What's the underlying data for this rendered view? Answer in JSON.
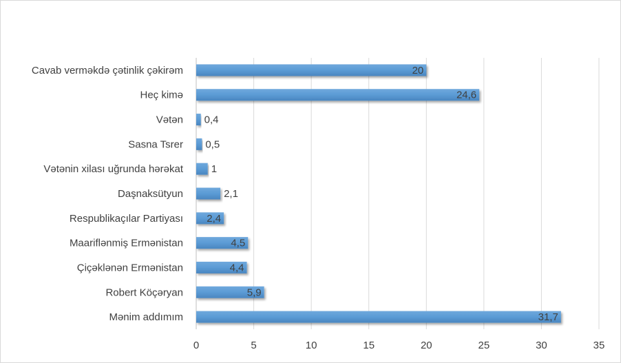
{
  "chart_data": {
    "type": "bar",
    "orientation": "horizontal",
    "categories": [
      "Cavab vermәkdә çәtinlik çәkirәm",
      "Heç kimә",
      "Vәtәn",
      "Sasna Tsrer",
      "Vәtәnin xilası uğrunda hәrәkat",
      "Daşnaksütyun",
      "Respublikaçılar Partiyası",
      "Maariflәnmiş Ermәnistan",
      "Çiçәklәnәn Ermәnistan",
      "Robert Köçәryan",
      "Mәnim addımım"
    ],
    "values": [
      20,
      24.6,
      0.4,
      0.5,
      1,
      2.1,
      2.4,
      4.5,
      4.4,
      5.9,
      31.7
    ],
    "value_labels": [
      "20",
      "24,6",
      "0,4",
      "0,5",
      "1",
      "2,1",
      "2,4",
      "4,5",
      "4,4",
      "5,9",
      "31,7"
    ],
    "x_ticks": [
      0,
      5,
      10,
      15,
      20,
      25,
      30,
      35
    ],
    "x_tick_labels": [
      "0",
      "5",
      "10",
      "15",
      "20",
      "25",
      "30",
      "35"
    ],
    "xlim": [
      0,
      35
    ],
    "title": "",
    "xlabel": "",
    "ylabel": "",
    "grid": "vertical",
    "legend": "none",
    "bar_color": "#5b9bd5",
    "grid_color": "#d9d9d9"
  }
}
